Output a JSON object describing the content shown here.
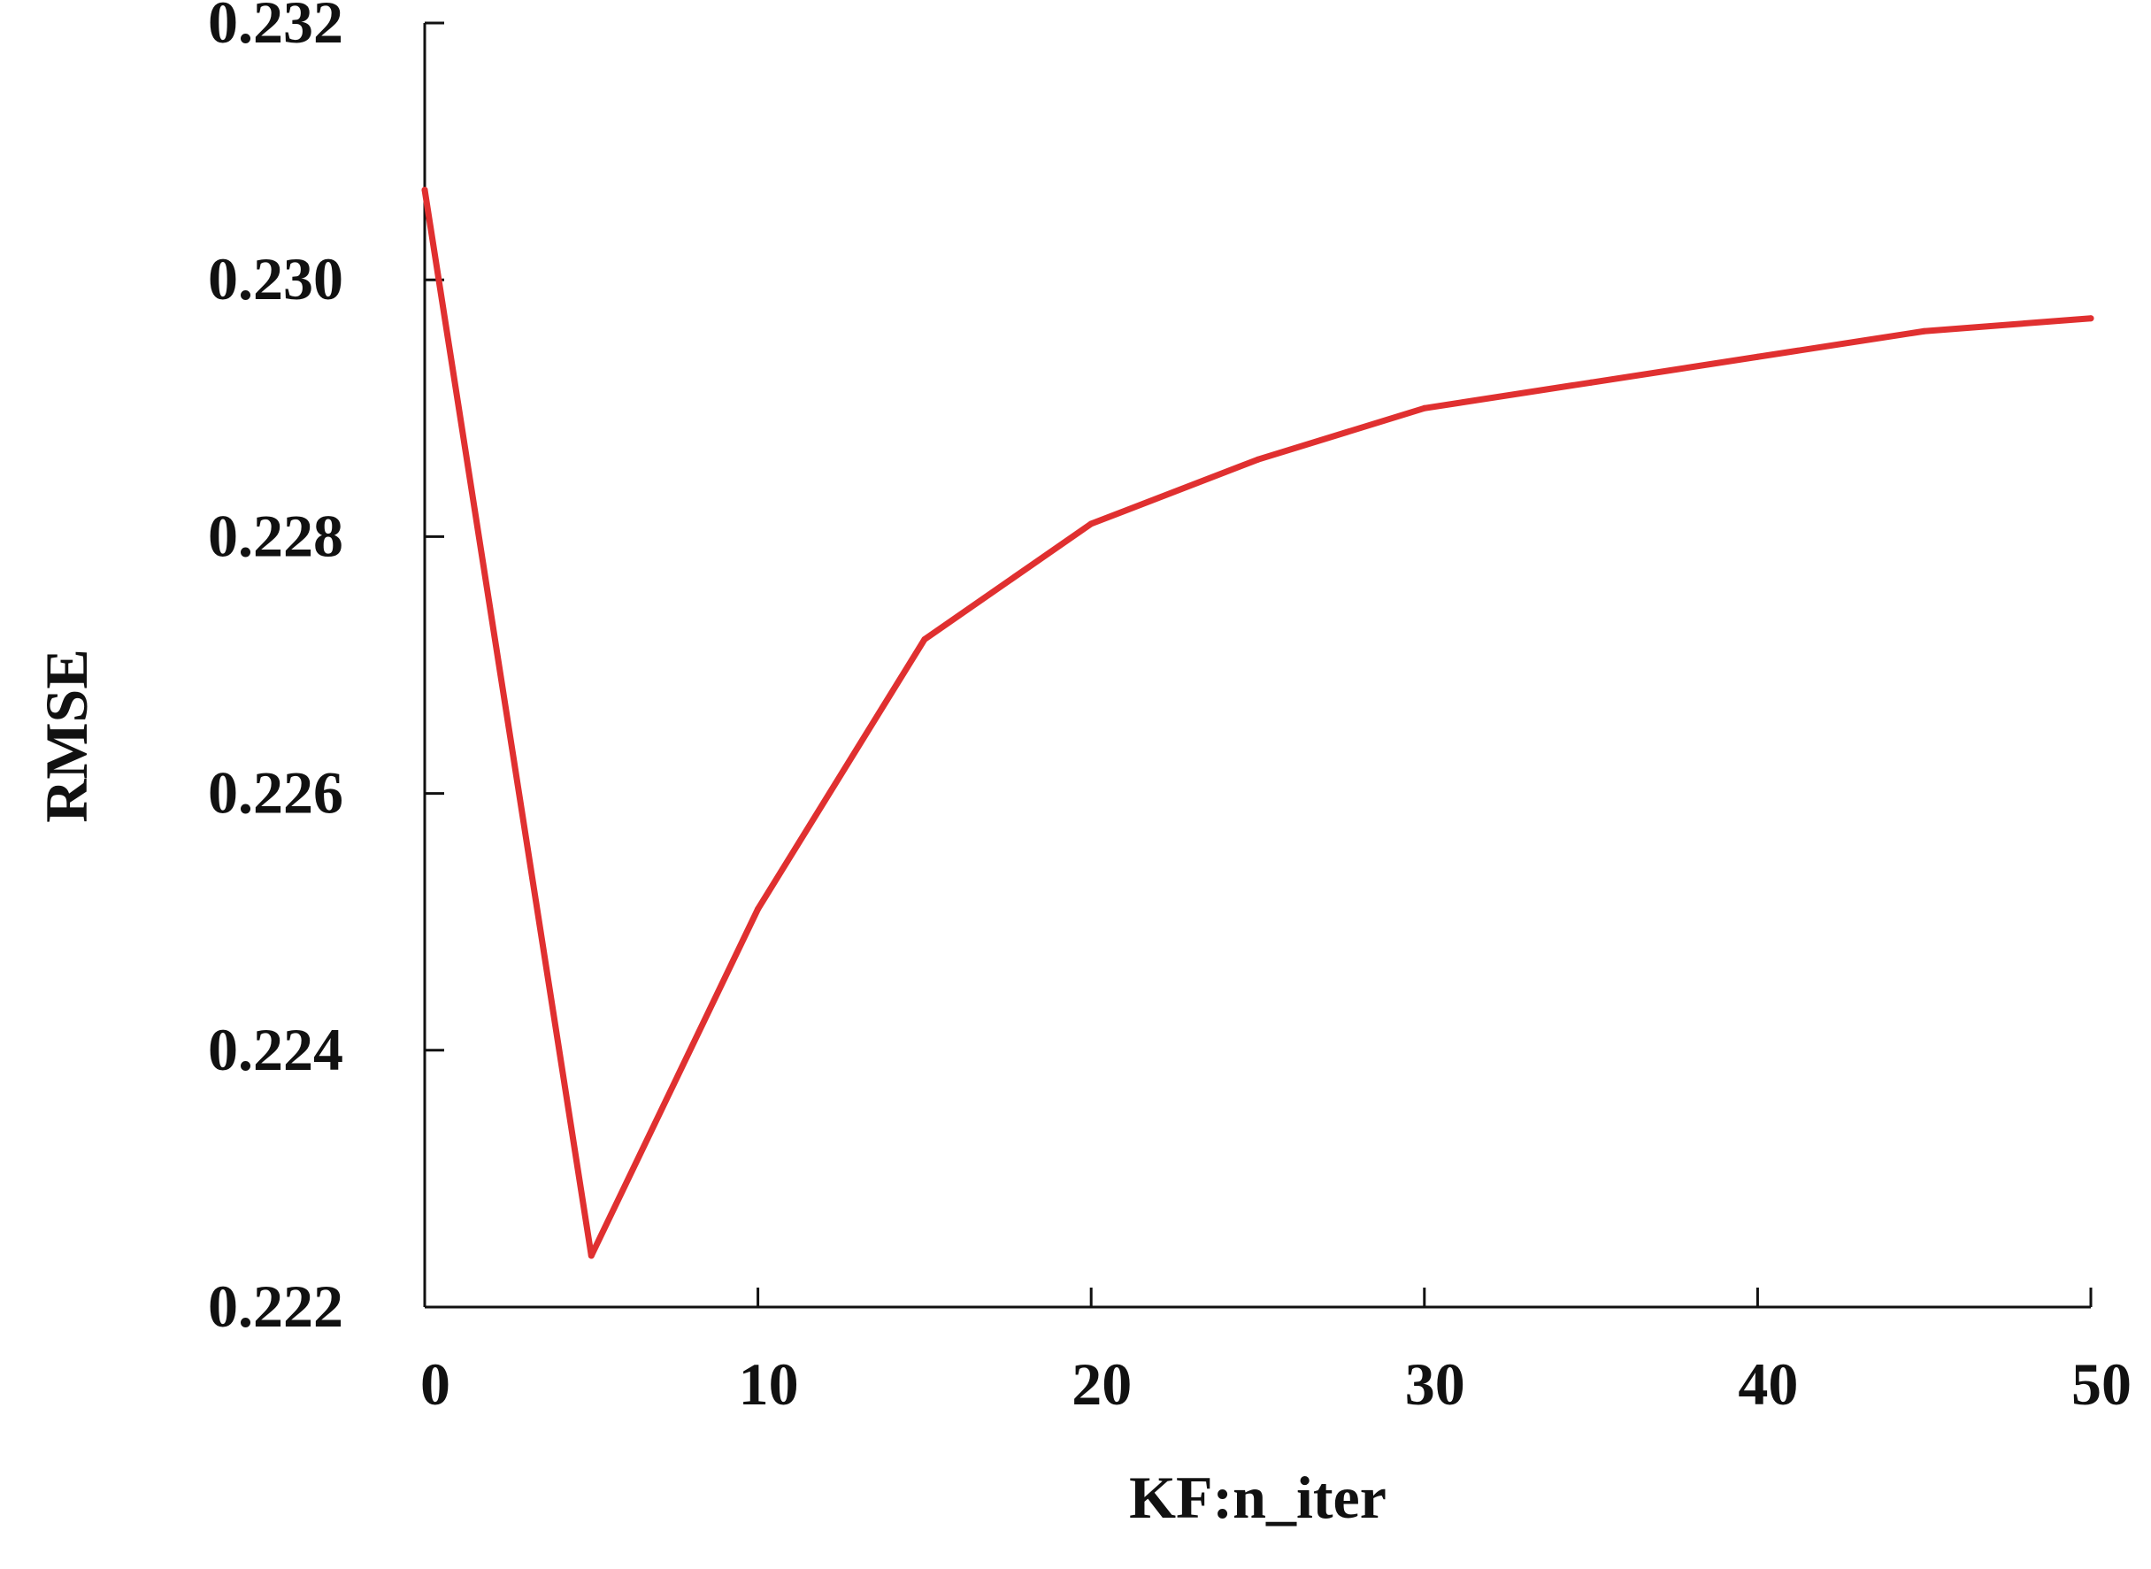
{
  "chart_data": {
    "type": "line",
    "xlabel": "KF:n_iter",
    "ylabel": "RMSE",
    "xlim": [
      0,
      50
    ],
    "ylim": [
      0.222,
      0.232
    ],
    "xticks": [
      0,
      10,
      20,
      30,
      40,
      50
    ],
    "yticks": [
      0.222,
      0.224,
      0.226,
      0.228,
      0.23,
      0.232
    ],
    "xtick_labels": [
      "0",
      "10",
      "20",
      "30",
      "40",
      "50"
    ],
    "ytick_labels": [
      "0.222",
      "0.224",
      "0.226",
      "0.228",
      "0.230",
      "0.232"
    ],
    "grid": false,
    "series": [
      {
        "color": "#e03030",
        "x": [
          0,
          5,
          10,
          15,
          20,
          25,
          30,
          35,
          40,
          45,
          50
        ],
        "y": [
          0.2307,
          0.2224,
          0.2251,
          0.2272,
          0.2281,
          0.2286,
          0.229,
          0.2292,
          0.2294,
          0.2296,
          0.2297
        ]
      }
    ]
  }
}
